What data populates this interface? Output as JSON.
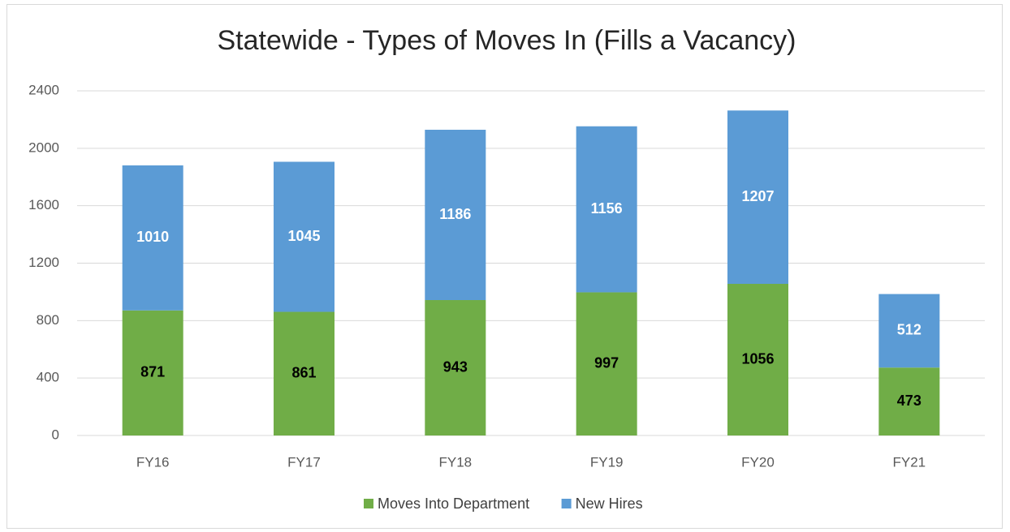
{
  "chart_data": {
    "type": "stacked_bar",
    "title": "Statewide - Types of Moves In (Fills a Vacancy)",
    "categories": [
      "FY16",
      "FY17",
      "FY18",
      "FY19",
      "FY20",
      "FY21"
    ],
    "series": [
      {
        "name": "Moves Into Department",
        "color": "#70ad47",
        "label_color": "#000000",
        "values": [
          871,
          861,
          943,
          997,
          1056,
          473
        ]
      },
      {
        "name": "New Hires",
        "color": "#5b9bd5",
        "label_color": "#ffffff",
        "values": [
          1010,
          1045,
          1186,
          1156,
          1207,
          512
        ]
      }
    ],
    "ylim": [
      0,
      2400
    ],
    "yticks": [
      0,
      400,
      800,
      1200,
      1600,
      2000,
      2400
    ],
    "grid": true,
    "legend": "bottom"
  }
}
